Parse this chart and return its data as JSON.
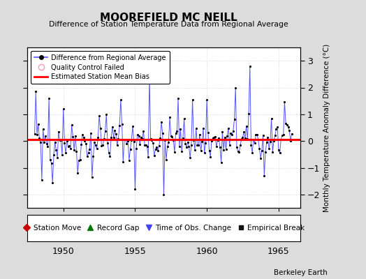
{
  "title": "MOOREFIELD MC NEILL",
  "subtitle": "Difference of Station Temperature Data from Regional Average",
  "ylabel_right": "Monthly Temperature Anomaly Difference (°C)",
  "xlim": [
    1947.5,
    1966.5
  ],
  "ylim": [
    -2.5,
    3.5
  ],
  "yticks": [
    -2,
    -1,
    0,
    1,
    2,
    3
  ],
  "xticks": [
    1950,
    1955,
    1960,
    1965
  ],
  "bias_value": 0.05,
  "background_color": "#dcdcdc",
  "plot_bg_color": "#ffffff",
  "line_color": "#5555ff",
  "dot_color": "#000000",
  "bias_color": "#ff0000",
  "grid_color": "#c8c8c8",
  "watermark": "Berkeley Earth",
  "seed": 42,
  "n_points": 216,
  "t_start": 1947.5
}
